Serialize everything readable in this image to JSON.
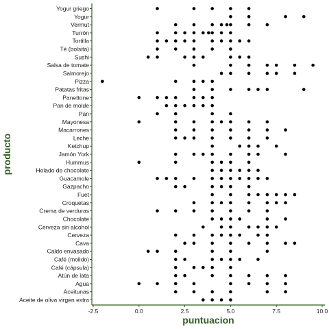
{
  "chart_data": {
    "type": "scatter",
    "title": "",
    "xlabel": "puntuacion",
    "ylabel": "producto",
    "xlim": [
      -2.5,
      10.0
    ],
    "x_ticks": [
      "-2.5",
      "0.0",
      "2.5",
      "5.0",
      "7.5",
      "10.0"
    ],
    "x_tick_values": [
      -2.5,
      0.0,
      2.5,
      5.0,
      7.5,
      10.0
    ],
    "grid": false,
    "colors": {
      "points": "#000000",
      "axis": "#2e5e1e",
      "text": "#1a1a1a",
      "title": "#2e5e1e"
    },
    "categories": [
      "Yogur griego",
      "Yogur",
      "Vermut",
      "Turrón",
      "Tortilla",
      "Té (bolsita)",
      "Sushi",
      "Salsa de tomate",
      "Salmorejo",
      "Pizza",
      "Patatas fritas",
      "Panettone",
      "Pan de molde",
      "Pan",
      "Mayonesa",
      "Macarrones",
      "Leche",
      "Ketchup",
      "Jamón York",
      "Hummus",
      "Helado de chocolate",
      "Guacamole",
      "Gazpacho",
      "Fuet",
      "Croquetas",
      "Crema de verduras",
      "Chocolate",
      "Cerveza sin alcohol",
      "Cerveza",
      "Cava",
      "Caldo envasado",
      "Café (molido)",
      "Café (cápsula)",
      "Atún de lata",
      "Agua",
      "Aceitunas",
      "Aceite de oliva virgen extra"
    ],
    "series": [
      {
        "values": [
          [
            1,
            3,
            4,
            5,
            6
          ],
          [
            5,
            6,
            8,
            9
          ],
          [
            2,
            3,
            4,
            4.5,
            4.8,
            5,
            6,
            7
          ],
          [
            1,
            2,
            2.5,
            3,
            3.5,
            3.8,
            4,
            4.5,
            5
          ],
          [
            1,
            1.5,
            2,
            2.5,
            3,
            4,
            4.5,
            5,
            5.5,
            6
          ],
          [
            1,
            2,
            3,
            4,
            5
          ],
          [
            0.5,
            1,
            2.5,
            3,
            3.5,
            5,
            5.5,
            6
          ],
          [
            3,
            5,
            6,
            7,
            7.5,
            8.5,
            9.5
          ],
          [
            4.5,
            5,
            6,
            7,
            7.5,
            8.5
          ],
          [
            -2,
            2,
            3,
            3.5,
            4
          ],
          [
            3,
            4,
            5,
            6,
            6.5,
            7,
            9
          ],
          [
            0,
            1,
            1.5,
            2,
            3,
            3.5,
            4
          ],
          [
            1.5,
            2,
            2.5,
            3,
            3.5,
            4
          ],
          [
            1,
            2,
            4,
            5
          ],
          [
            0,
            2,
            3,
            4,
            4.5,
            5,
            6,
            7
          ],
          [
            2,
            3,
            4,
            5,
            6,
            7,
            8
          ],
          [
            2,
            2.5,
            3,
            4,
            5,
            6,
            7
          ],
          [
            4,
            5.5,
            6,
            6.5,
            7.5
          ],
          [
            2,
            3,
            3.5,
            4,
            5,
            6,
            6.5,
            8
          ],
          [
            0,
            2,
            4,
            4.5,
            5,
            6
          ],
          [
            4,
            4.5,
            5,
            5.5,
            6,
            6.5
          ],
          [
            1,
            1.5,
            2,
            3,
            4,
            4.5,
            5,
            5.5,
            6,
            6.5,
            7
          ],
          [
            2,
            2.5,
            4,
            4.5,
            5,
            6
          ],
          [
            4,
            5,
            6,
            6.5,
            7,
            7.5,
            8,
            8.5
          ],
          [
            3,
            4,
            4.5,
            5,
            6,
            7,
            7.5,
            8
          ],
          [
            1,
            2,
            3,
            4,
            5,
            6,
            7
          ],
          [
            4,
            4.5,
            5,
            5.5,
            7,
            8
          ],
          [
            3.5,
            4.5,
            5,
            6,
            6.5,
            7,
            7.5
          ],
          [
            2,
            3,
            4,
            4.5,
            5,
            5.5,
            6.5,
            7
          ],
          [
            2.5,
            3,
            4,
            5,
            6,
            7,
            8,
            8.5
          ],
          [
            0.5,
            1,
            2,
            4,
            5,
            7
          ],
          [
            2,
            2.5,
            4,
            4.5,
            5,
            5.5,
            6.5
          ],
          [
            2,
            3,
            3.5,
            4,
            5
          ],
          [
            2,
            2.5,
            4,
            5,
            6,
            7,
            8
          ],
          [
            0,
            1,
            2,
            3,
            5,
            6,
            7,
            8
          ],
          [
            2,
            3,
            4,
            5,
            7,
            8
          ],
          [
            3.5,
            4,
            4.5,
            5
          ]
        ]
      }
    ]
  }
}
